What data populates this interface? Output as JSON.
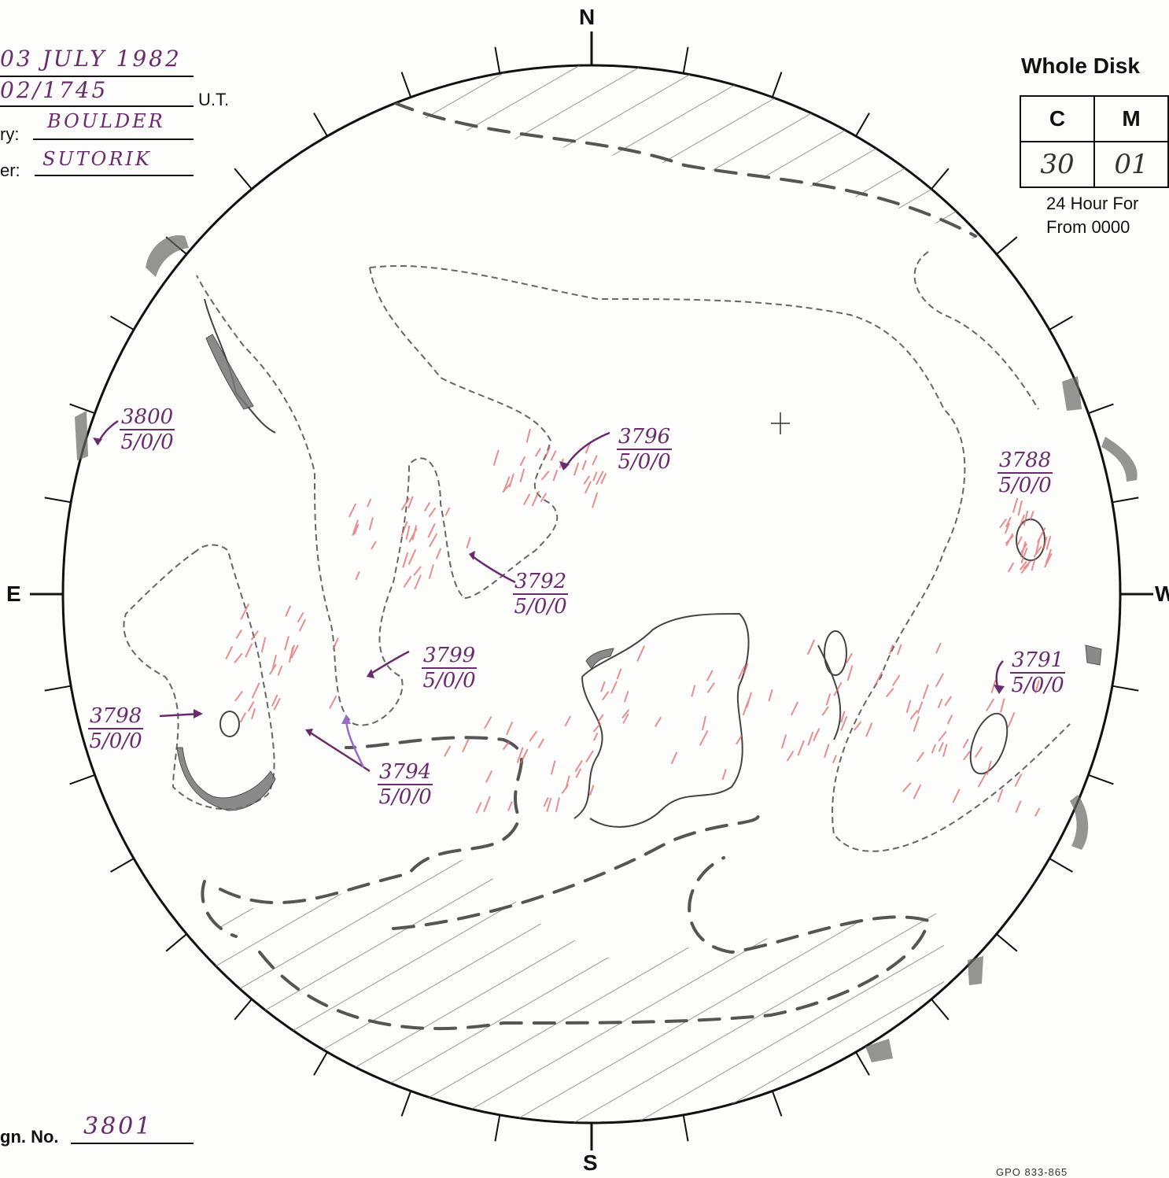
{
  "header": {
    "date": "03 JULY 1982",
    "time": "02/1745",
    "time_unit": "U.T.",
    "observatory_label": "ry:",
    "observatory": "BOULDER",
    "observer_label": "er:",
    "observer": "SUTORIK"
  },
  "compass": {
    "north": "N",
    "south": "S",
    "east": "E",
    "west": "W"
  },
  "forecast": {
    "title": "Whole  Disk",
    "columns": [
      "C",
      "M"
    ],
    "values": [
      "30",
      "01"
    ],
    "note_line1": "24 Hour  For",
    "note_line2": "From  0000"
  },
  "regions": [
    {
      "number": "3800",
      "class": "5/0/0"
    },
    {
      "number": "3796",
      "class": "5/0/0"
    },
    {
      "number": "3788",
      "class": "5/0/0"
    },
    {
      "number": "3792",
      "class": "5/0/0"
    },
    {
      "number": "3799",
      "class": "5/0/0"
    },
    {
      "number": "3791",
      "class": "5/0/0"
    },
    {
      "number": "3798",
      "class": "5/0/0"
    },
    {
      "number": "3794",
      "class": "5/0/0"
    }
  ],
  "footer": {
    "sign_label": "gn.  No.",
    "sign_number": "3801",
    "print_code": "GPO 833-865"
  },
  "colors": {
    "ink": "#111111",
    "handwriting": "#6a2a6e",
    "plage": "#e06a6a",
    "pencil": "#555555"
  }
}
